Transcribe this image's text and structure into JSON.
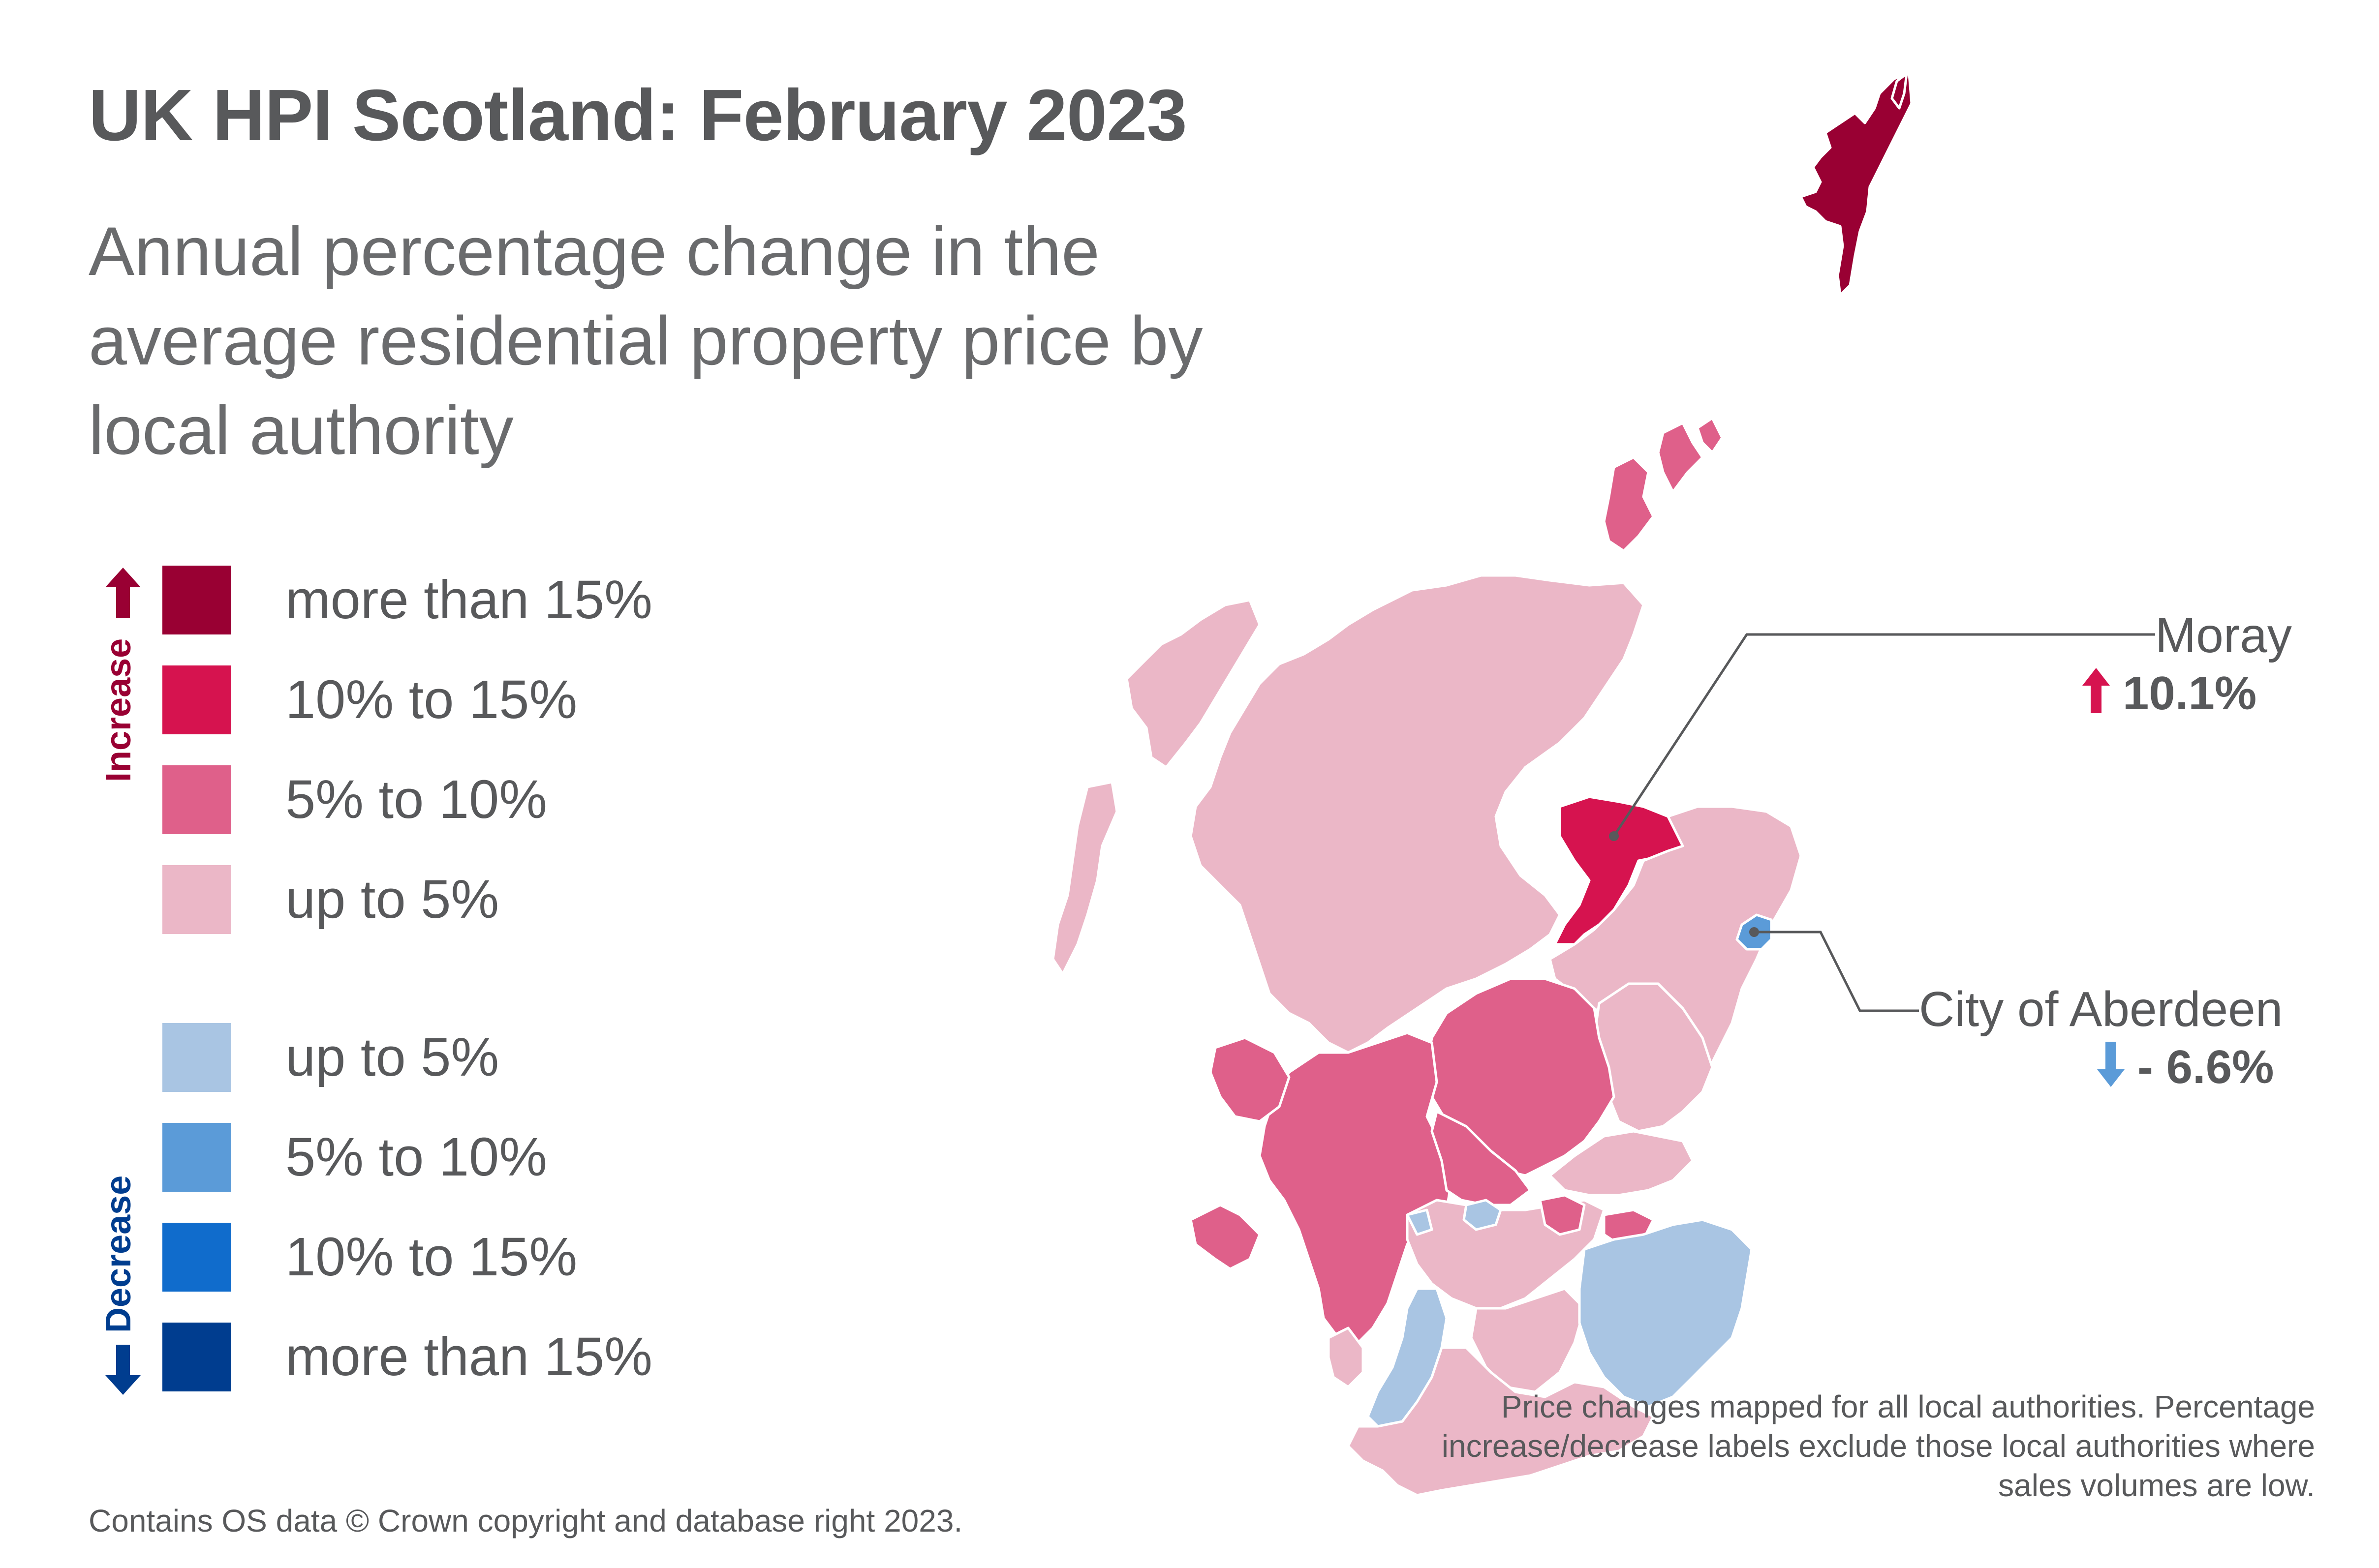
{
  "title": "UK HPI Scotland: February 2023",
  "subtitle": "Annual percentage change in the average residential property price by local authority",
  "legend": {
    "increase_label": "Increase",
    "decrease_label": "Decrease",
    "increase": [
      {
        "label": "more than 15%",
        "color": "#990033"
      },
      {
        "label": "10% to 15%",
        "color": "#d6134f"
      },
      {
        "label": "5% to 10%",
        "color": "#df608a"
      },
      {
        "label": "up to 5%",
        "color": "#ebb7c7"
      }
    ],
    "decrease": [
      {
        "label": "up to 5%",
        "color": "#a9c5e3"
      },
      {
        "label": "5% to 10%",
        "color": "#5b9bd8"
      },
      {
        "label": "10% to 15%",
        "color": "#106ccc"
      },
      {
        "label": "more than 15%",
        "color": "#003d8f"
      }
    ]
  },
  "callouts": [
    {
      "name": "Moray",
      "direction": "increase",
      "value": "10.1%",
      "arrow_color": "#d6134f",
      "icon": "arrow-up-icon"
    },
    {
      "name": "City of Aberdeen",
      "direction": "decrease",
      "value": "- 6.6%",
      "arrow_color": "#5b9bd8",
      "icon": "arrow-down-icon"
    }
  ],
  "note": "Price changes mapped for all local authorities. Percentage increase/decrease labels exclude those local authorities where sales volumes are low.",
  "source": "Contains OS data © Crown copyright and database right 2023."
}
